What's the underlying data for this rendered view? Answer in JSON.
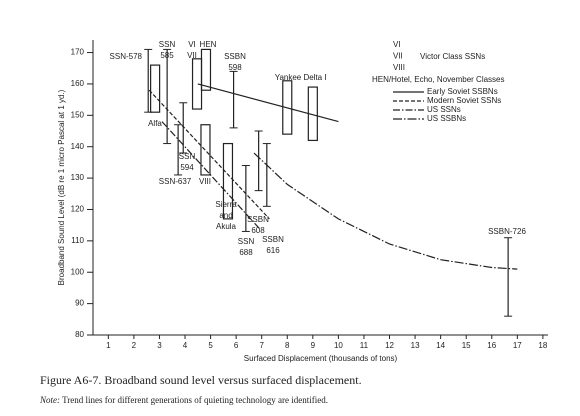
{
  "chart_data": {
    "type": "range",
    "x_label": "Surfaced Displacement (thousands of tons)",
    "y_label": "Broadband Sound Level (dB re 1 micro Pascal at 1 yd.)",
    "xlim": [
      0.4,
      18.2
    ],
    "ylim": [
      80,
      174
    ],
    "xticks": [
      1,
      2,
      3,
      4,
      5,
      6,
      7,
      8,
      9,
      10,
      11,
      12,
      13,
      14,
      15,
      16,
      17,
      18
    ],
    "yticks": [
      80,
      90,
      100,
      110,
      120,
      130,
      140,
      150,
      160,
      170
    ],
    "color": "#222",
    "us_boats": [
      {
        "label": [
          "SSN-578"
        ],
        "x": 2.56,
        "low": 151,
        "high": 171
      },
      {
        "label": [
          "SSN",
          "585"
        ],
        "x": 3.3,
        "low": 141,
        "high": 171
      },
      {
        "label": [
          "SSN-637"
        ],
        "x": 3.73,
        "low": 131,
        "high": 147
      },
      {
        "label": [
          "SSN",
          "594"
        ],
        "x": 3.93,
        "low": 138,
        "high": 154
      },
      {
        "label": [
          "SSBN",
          "598"
        ],
        "x": 5.9,
        "low": 146,
        "high": 164
      },
      {
        "label": [
          "SSBN",
          "608"
        ],
        "x": 6.88,
        "low": 126,
        "high": 145
      },
      {
        "label": [
          "SSBN",
          "616"
        ],
        "x": 7.2,
        "low": 121,
        "high": 141
      },
      {
        "label": [
          "SSN",
          "688"
        ],
        "x": 6.38,
        "low": 113,
        "high": 134
      },
      {
        "label": [
          "SSBN-726"
        ],
        "x": 16.64,
        "low": 86,
        "high": 111
      }
    ],
    "soviet_boats": [
      {
        "label": [
          "Alfa"
        ],
        "x": 2.83,
        "low": 151,
        "high": 166
      },
      {
        "label": [
          "HEN"
        ],
        "x": 4.82,
        "low": 158,
        "high": 171
      },
      {
        "label": [
          "VI",
          "VII"
        ],
        "x": 4.47,
        "low": 152,
        "high": 168
      },
      {
        "label": [
          "VIII"
        ],
        "x": 4.8,
        "low": 131,
        "high": 147
      },
      {
        "label": [
          "Sierra",
          "and",
          "Akula"
        ],
        "x": 5.68,
        "low": 117,
        "high": 141
      },
      {
        "label": [
          "Yankee"
        ],
        "x": 8.0,
        "low": 144,
        "high": 161
      },
      {
        "label": [
          "Delta I"
        ],
        "x": 9.0,
        "low": 142,
        "high": 159
      }
    ],
    "trend_lines": [
      {
        "name": "Early Soviet SSBNs",
        "dash": "none",
        "x": [
          4.5,
          10
        ],
        "y": [
          160,
          148
        ]
      },
      {
        "name": "Modern Soviet SSNs",
        "dash": "4 2",
        "x": [
          2.6,
          7.3
        ],
        "y": [
          158,
          117
        ]
      },
      {
        "name": "US SSNs",
        "dash": "7 2 1.5 2",
        "x": [
          3.1,
          6.9
        ],
        "y": [
          148,
          114
        ]
      },
      {
        "name": "US SSBNs",
        "dash": "9 2 1.5 2",
        "x": [
          6.7,
          8,
          10,
          12,
          14,
          16,
          17
        ],
        "y": [
          138,
          128,
          117,
          109,
          104,
          101.5,
          101
        ]
      }
    ],
    "victor_classes": [
      "VI",
      "VII",
      "VIII"
    ],
    "victor_label": "Victor Class SSNs",
    "hen_label": "HEN/Hotel, Echo, November Classes"
  },
  "caption": "Figure A6-7. Broadband sound level versus surfaced displacement.",
  "note": {
    "prefix": "Note:",
    "text": "Trend lines for different generations of quieting technology are identified."
  }
}
